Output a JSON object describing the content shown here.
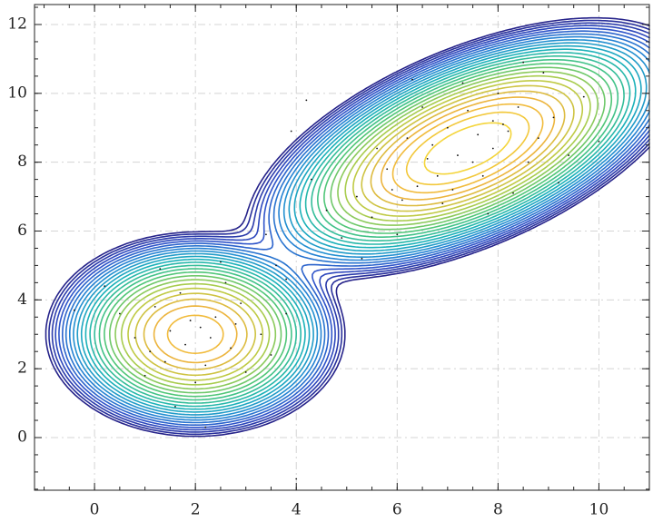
{
  "chart_data": {
    "type": "contour",
    "xlim": [
      -1.19,
      11.0
    ],
    "ylim": [
      -1.53,
      12.58
    ],
    "xticks": [
      0,
      2,
      4,
      6,
      8,
      10
    ],
    "yticks": [
      0,
      2,
      4,
      6,
      8,
      10,
      12
    ],
    "grid": true,
    "components": [
      {
        "weight": 0.3,
        "mean": [
          2.0,
          3.0
        ],
        "cov": [
          [
            0.8,
            0.0
          ],
          [
            0.0,
            0.8
          ]
        ]
      },
      {
        "weight": 0.7,
        "mean": [
          7.4,
          8.4
        ],
        "cov": [
          [
            1.6,
            0.8
          ],
          [
            0.8,
            1.2
          ]
        ]
      }
    ],
    "levels": 26,
    "level_scale": "log",
    "level_min_fraction": 0.0025,
    "colors": [
      "#26238a",
      "#2f4fc8",
      "#2389d4",
      "#1bb3b8",
      "#4cc67a",
      "#b9cd45",
      "#f0b23c",
      "#f5e23a"
    ],
    "points": {
      "color": "#111",
      "x": [
        2.1,
        1.8,
        2.4,
        1.5,
        2.7,
        1.2,
        2.9,
        2.2,
        1.7,
        0.8,
        3.3,
        2.0,
        1.4,
        2.6,
        0.5,
        3.5,
        1.9,
        2.3,
        1.0,
        3.0,
        2.5,
        0.2,
        1.6,
        3.8,
        2.8,
        1.3,
        2.2,
        -0.4,
        3.6,
        1.1,
        7.6,
        7.2,
        8.1,
        6.8,
        7.9,
        6.4,
        8.4,
        7.0,
        6.1,
        8.8,
        7.4,
        6.6,
        5.8,
        8.0,
        9.1,
        5.5,
        7.7,
        6.9,
        8.6,
        5.2,
        7.3,
        9.4,
        6.2,
        4.9,
        8.3,
        6.0,
        9.7,
        5.6,
        7.1,
        8.9,
        4.6,
        6.5,
        10.0,
        5.3,
        7.8,
        4.3,
        8.5,
        9.2,
        6.3,
        3.9,
        7.5,
        6.7,
        8.2,
        7.9,
        5.9,
        3.8,
        4.0,
        3.4,
        4.2
      ],
      "y": [
        3.2,
        2.7,
        3.5,
        3.1,
        2.6,
        3.8,
        3.9,
        2.1,
        4.2,
        2.9,
        3.0,
        1.6,
        2.2,
        4.5,
        3.6,
        2.4,
        3.4,
        2.9,
        1.8,
        1.9,
        5.1,
        4.4,
        0.9,
        3.6,
        3.3,
        4.9,
        0.3,
        3.7,
        5.0,
        2.5,
        8.8,
        8.2,
        9.1,
        7.6,
        8.4,
        7.3,
        9.6,
        9.0,
        6.9,
        8.7,
        9.5,
        8.1,
        7.8,
        10.0,
        9.3,
        6.4,
        7.6,
        6.8,
        8.0,
        7.0,
        10.3,
        8.2,
        8.7,
        5.8,
        7.1,
        5.9,
        9.9,
        8.4,
        7.2,
        10.6,
        6.6,
        9.6,
        8.6,
        5.2,
        6.5,
        7.5,
        10.9,
        7.4,
        10.4,
        8.9,
        8.0,
        8.5,
        8.9,
        9.2,
        7.2,
        4.6,
        -1.2,
        5.9,
        9.8
      ]
    }
  }
}
